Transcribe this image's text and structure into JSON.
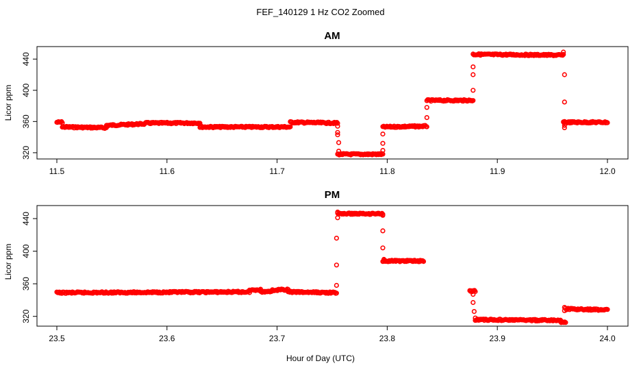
{
  "chart_data": {
    "title": "FEF_140129  1 Hz CO2 Zoomed",
    "xlabel": "Hour of Day (UTC)",
    "ylabel": "Licor ppm",
    "panels": [
      {
        "type": "scatter",
        "title": "AM",
        "xlim": [
          11.5,
          12.0
        ],
        "xticks": [
          11.5,
          11.6,
          11.7,
          11.8,
          11.9,
          12.0
        ],
        "xtick_labels": [
          "11.5",
          "11.6",
          "11.7",
          "11.8",
          "11.9",
          "12.0"
        ],
        "ylim": [
          312,
          456
        ],
        "yticks": [
          320,
          360,
          400,
          440
        ],
        "ytick_labels": [
          "320",
          "360",
          "400",
          "440"
        ],
        "series": [
          {
            "color": "#ff0000",
            "segments": [
              [
                11.5,
                11.505,
                359,
                359
              ],
              [
                11.505,
                11.545,
                353,
                352
              ],
              [
                11.545,
                11.58,
                355,
                357
              ],
              [
                11.58,
                11.63,
                358,
                358
              ],
              [
                11.63,
                11.712,
                353,
                353
              ],
              [
                11.712,
                11.755,
                359,
                358
              ],
              [
                11.755,
                11.796,
                318,
                318
              ],
              [
                11.796,
                11.836,
                353,
                354
              ],
              [
                11.836,
                11.878,
                387,
                387
              ],
              [
                11.878,
                11.96,
                446,
                445
              ],
              [
                11.96,
                12.0,
                359,
                359
              ]
            ],
            "transitions": [
              [
                11.755,
                354
              ],
              [
                11.755,
                346
              ],
              [
                11.755,
                343
              ],
              [
                11.756,
                333
              ],
              [
                11.756,
                322
              ],
              [
                11.796,
                323
              ],
              [
                11.796,
                332
              ],
              [
                11.796,
                344
              ],
              [
                11.836,
                365
              ],
              [
                11.836,
                378
              ],
              [
                11.878,
                400
              ],
              [
                11.878,
                420
              ],
              [
                11.878,
                430
              ],
              [
                11.96,
                449
              ],
              [
                11.961,
                420
              ],
              [
                11.961,
                385
              ],
              [
                11.961,
                360
              ],
              [
                11.961,
                355
              ],
              [
                11.961,
                352
              ]
            ]
          }
        ]
      },
      {
        "type": "scatter",
        "title": "PM",
        "xlim": [
          23.5,
          24.0
        ],
        "xticks": [
          23.5,
          23.6,
          23.7,
          23.8,
          23.9,
          24.0
        ],
        "xtick_labels": [
          "23.5",
          "23.6",
          "23.7",
          "23.8",
          "23.9",
          "24.0"
        ],
        "ylim": [
          308,
          456
        ],
        "yticks": [
          320,
          360,
          400,
          440
        ],
        "ytick_labels": [
          "320",
          "360",
          "400",
          "440"
        ],
        "series": [
          {
            "color": "#ff0000",
            "segments": [
              [
                23.5,
                23.675,
                349,
                350
              ],
              [
                23.675,
                23.685,
                352,
                353
              ],
              [
                23.685,
                23.695,
                350,
                351
              ],
              [
                23.695,
                23.71,
                352,
                353
              ],
              [
                23.71,
                23.754,
                350,
                349
              ],
              [
                23.755,
                23.796,
                446,
                446
              ],
              [
                23.796,
                23.833,
                388,
                388
              ],
              [
                23.875,
                23.88,
                351,
                351
              ],
              [
                23.88,
                23.958,
                316,
                315
              ],
              [
                23.958,
                23.962,
                312,
                313
              ],
              [
                23.962,
                24.0,
                329,
                328
              ]
            ],
            "transitions": [
              [
                23.754,
                358
              ],
              [
                23.754,
                383
              ],
              [
                23.754,
                416
              ],
              [
                23.755,
                441
              ],
              [
                23.755,
                448
              ],
              [
                23.796,
                444
              ],
              [
                23.796,
                425
              ],
              [
                23.796,
                404
              ],
              [
                23.797,
                390
              ],
              [
                23.878,
                347
              ],
              [
                23.878,
                337
              ],
              [
                23.879,
                326
              ],
              [
                23.88,
                318
              ],
              [
                23.961,
                327
              ],
              [
                23.961,
                331
              ]
            ]
          }
        ]
      }
    ]
  }
}
